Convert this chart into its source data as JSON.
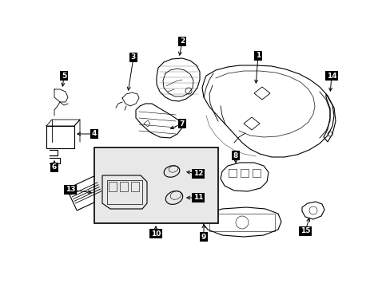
{
  "bg_color": "#ffffff",
  "line_color": "#000000",
  "label_bg": "#000000",
  "label_fg": "#ffffff",
  "diagram_bg": "#e8e8e8",
  "fig_width": 4.89,
  "fig_height": 3.6,
  "dpi": 100
}
